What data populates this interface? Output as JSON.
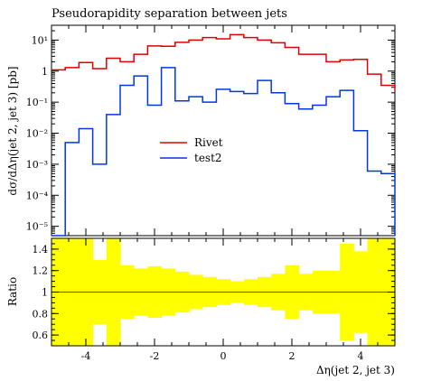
{
  "chart_data": [
    {
      "type": "line",
      "title": "Pseudorapidity separation between jets",
      "ylabel": "dσ/dΔη(jet 2, jet 3) [pb]",
      "yscale": "log",
      "xlim": [
        -5.0,
        5.0
      ],
      "ylim": [
        5e-06,
        30
      ],
      "y_tick_labels": [
        "10¹",
        "1",
        "10⁻¹",
        "10⁻²",
        "10⁻³",
        "10⁻⁴",
        "10⁻⁵"
      ],
      "y_tick_values": [
        10,
        1,
        0.1,
        0.01,
        0.001,
        0.0001,
        1e-05
      ],
      "legend_position": "middle",
      "bin_edges": [
        -5.0,
        -4.6,
        -4.2,
        -3.8,
        -3.4,
        -3.0,
        -2.6,
        -2.2,
        -1.8,
        -1.4,
        -1.0,
        -0.6,
        -0.2,
        0.2,
        0.6,
        1.0,
        1.4,
        1.8,
        2.2,
        2.6,
        3.0,
        3.4,
        3.8,
        4.2,
        4.6,
        5.0
      ],
      "series": [
        {
          "name": "Rivet",
          "color": "#e00000",
          "values": [
            1.1,
            1.3,
            1.9,
            1.2,
            2.6,
            2.0,
            3.5,
            6.5,
            6.3,
            8.5,
            10,
            12,
            11,
            15,
            12,
            10,
            8.2,
            5.8,
            3.5,
            3.5,
            2.0,
            2.3,
            2.4,
            0.8,
            0.35,
            0.25
          ]
        },
        {
          "name": "test2",
          "color": "#0038e0",
          "values": [
            1e-07,
            0.005,
            0.014,
            0.001,
            0.04,
            0.35,
            0.7,
            0.08,
            1.3,
            0.11,
            0.15,
            0.1,
            0.26,
            0.22,
            0.19,
            0.5,
            0.2,
            0.09,
            0.06,
            0.08,
            0.15,
            0.24,
            0.012,
            0.0006,
            0.0005,
            1e-07
          ]
        }
      ]
    },
    {
      "type": "area",
      "ylabel": "Ratio",
      "xlabel": "Δη(jet 2, jet 3)",
      "xlim": [
        -5.0,
        5.0
      ],
      "ylim": [
        0.5,
        1.5
      ],
      "x_tick_labels": [
        "-4",
        "-2",
        "0",
        "2",
        "4"
      ],
      "x_tick_values": [
        -4,
        -2,
        0,
        2,
        4
      ],
      "y_tick_labels": [
        "1.4",
        "1.2",
        "1",
        "0.8",
        "0.6"
      ],
      "y_tick_values": [
        1.4,
        1.2,
        1.0,
        0.8,
        0.6
      ],
      "band_color": "#ffff00",
      "reference_line": 1.0,
      "band_half_width": [
        0.5,
        0.5,
        0.5,
        0.3,
        0.5,
        0.25,
        0.22,
        0.24,
        0.22,
        0.19,
        0.16,
        0.14,
        0.12,
        0.1,
        0.12,
        0.14,
        0.17,
        0.25,
        0.17,
        0.2,
        0.2,
        0.45,
        0.38,
        0.5,
        0.5,
        0.5
      ]
    }
  ]
}
